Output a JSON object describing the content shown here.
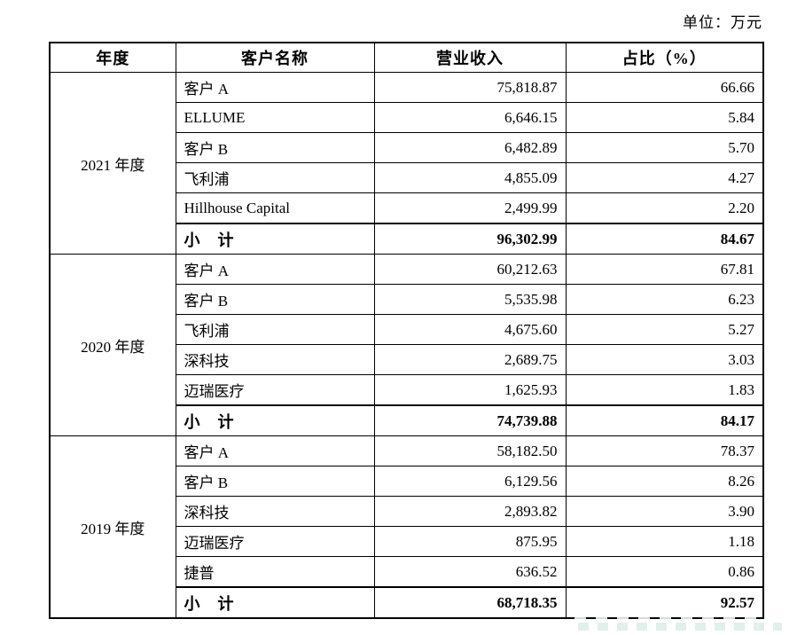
{
  "page": {
    "unit_note": "单位：万元"
  },
  "table": {
    "headers": [
      "年度",
      "客户名称",
      "营业收入",
      "占比（%）"
    ],
    "sections": [
      {
        "year": "2021 年度",
        "rows": [
          {
            "name": "客户 A",
            "revenue": "75,818.87",
            "pct": "66.66",
            "subtotal": false
          },
          {
            "name": "ELLUME",
            "revenue": "6,646.15",
            "pct": "5.84",
            "subtotal": false
          },
          {
            "name": "客户 B",
            "revenue": "6,482.89",
            "pct": "5.70",
            "subtotal": false
          },
          {
            "name": "飞利浦",
            "revenue": "4,855.09",
            "pct": "4.27",
            "subtotal": false
          },
          {
            "name": "Hillhouse Capital",
            "revenue": "2,499.99",
            "pct": "2.20",
            "subtotal": false
          },
          {
            "name": "小　计",
            "revenue": "96,302.99",
            "pct": "84.67",
            "subtotal": true
          }
        ]
      },
      {
        "year": "2020 年度",
        "rows": [
          {
            "name": "客户 A",
            "revenue": "60,212.63",
            "pct": "67.81",
            "subtotal": false
          },
          {
            "name": "客户 B",
            "revenue": "5,535.98",
            "pct": "6.23",
            "subtotal": false
          },
          {
            "name": "飞利浦",
            "revenue": "4,675.60",
            "pct": "5.27",
            "subtotal": false
          },
          {
            "name": "深科技",
            "revenue": "2,689.75",
            "pct": "3.03",
            "subtotal": false
          },
          {
            "name": "迈瑞医疗",
            "revenue": "1,625.93",
            "pct": "1.83",
            "subtotal": false
          },
          {
            "name": "小　计",
            "revenue": "74,739.88",
            "pct": "84.17",
            "subtotal": true
          }
        ]
      },
      {
        "year": "2019 年度",
        "rows": [
          {
            "name": "客户 A",
            "revenue": "58,182.50",
            "pct": "78.37",
            "subtotal": false
          },
          {
            "name": "客户 B",
            "revenue": "6,129.56",
            "pct": "8.26",
            "subtotal": false
          },
          {
            "name": "深科技",
            "revenue": "2,893.82",
            "pct": "3.90",
            "subtotal": false
          },
          {
            "name": "迈瑞医疗",
            "revenue": "875.95",
            "pct": "1.18",
            "subtotal": false
          },
          {
            "name": "捷普",
            "revenue": "636.52",
            "pct": "0.86",
            "subtotal": false
          },
          {
            "name": "小　计",
            "revenue": "68,718.35",
            "pct": "92.57",
            "subtotal": true
          }
        ]
      }
    ]
  }
}
